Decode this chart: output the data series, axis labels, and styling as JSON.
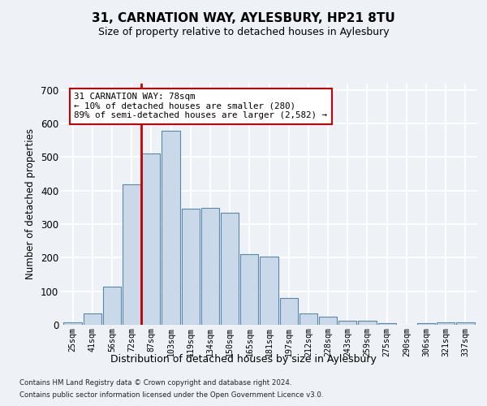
{
  "title": "31, CARNATION WAY, AYLESBURY, HP21 8TU",
  "subtitle": "Size of property relative to detached houses in Aylesbury",
  "xlabel": "Distribution of detached houses by size in Aylesbury",
  "ylabel": "Number of detached properties",
  "bar_labels": [
    "25sqm",
    "41sqm",
    "56sqm",
    "72sqm",
    "87sqm",
    "103sqm",
    "119sqm",
    "134sqm",
    "150sqm",
    "165sqm",
    "181sqm",
    "197sqm",
    "212sqm",
    "228sqm",
    "243sqm",
    "259sqm",
    "275sqm",
    "290sqm",
    "306sqm",
    "321sqm",
    "337sqm"
  ],
  "bar_values": [
    8,
    33,
    113,
    418,
    510,
    578,
    347,
    348,
    335,
    211,
    203,
    80,
    35,
    24,
    13,
    13,
    6,
    0,
    5,
    8,
    8
  ],
  "bar_color": "#c9d9ea",
  "bar_edgecolor": "#5588aa",
  "vline_color": "#cc0000",
  "annotation_text": "31 CARNATION WAY: 78sqm\n← 10% of detached houses are smaller (280)\n89% of semi-detached houses are larger (2,582) →",
  "ylim": [
    0,
    720
  ],
  "yticks": [
    0,
    100,
    200,
    300,
    400,
    500,
    600,
    700
  ],
  "footer1": "Contains HM Land Registry data © Crown copyright and database right 2024.",
  "footer2": "Contains public sector information licensed under the Open Government Licence v3.0.",
  "bg_color": "#eef2f7",
  "grid_color": "#ffffff"
}
